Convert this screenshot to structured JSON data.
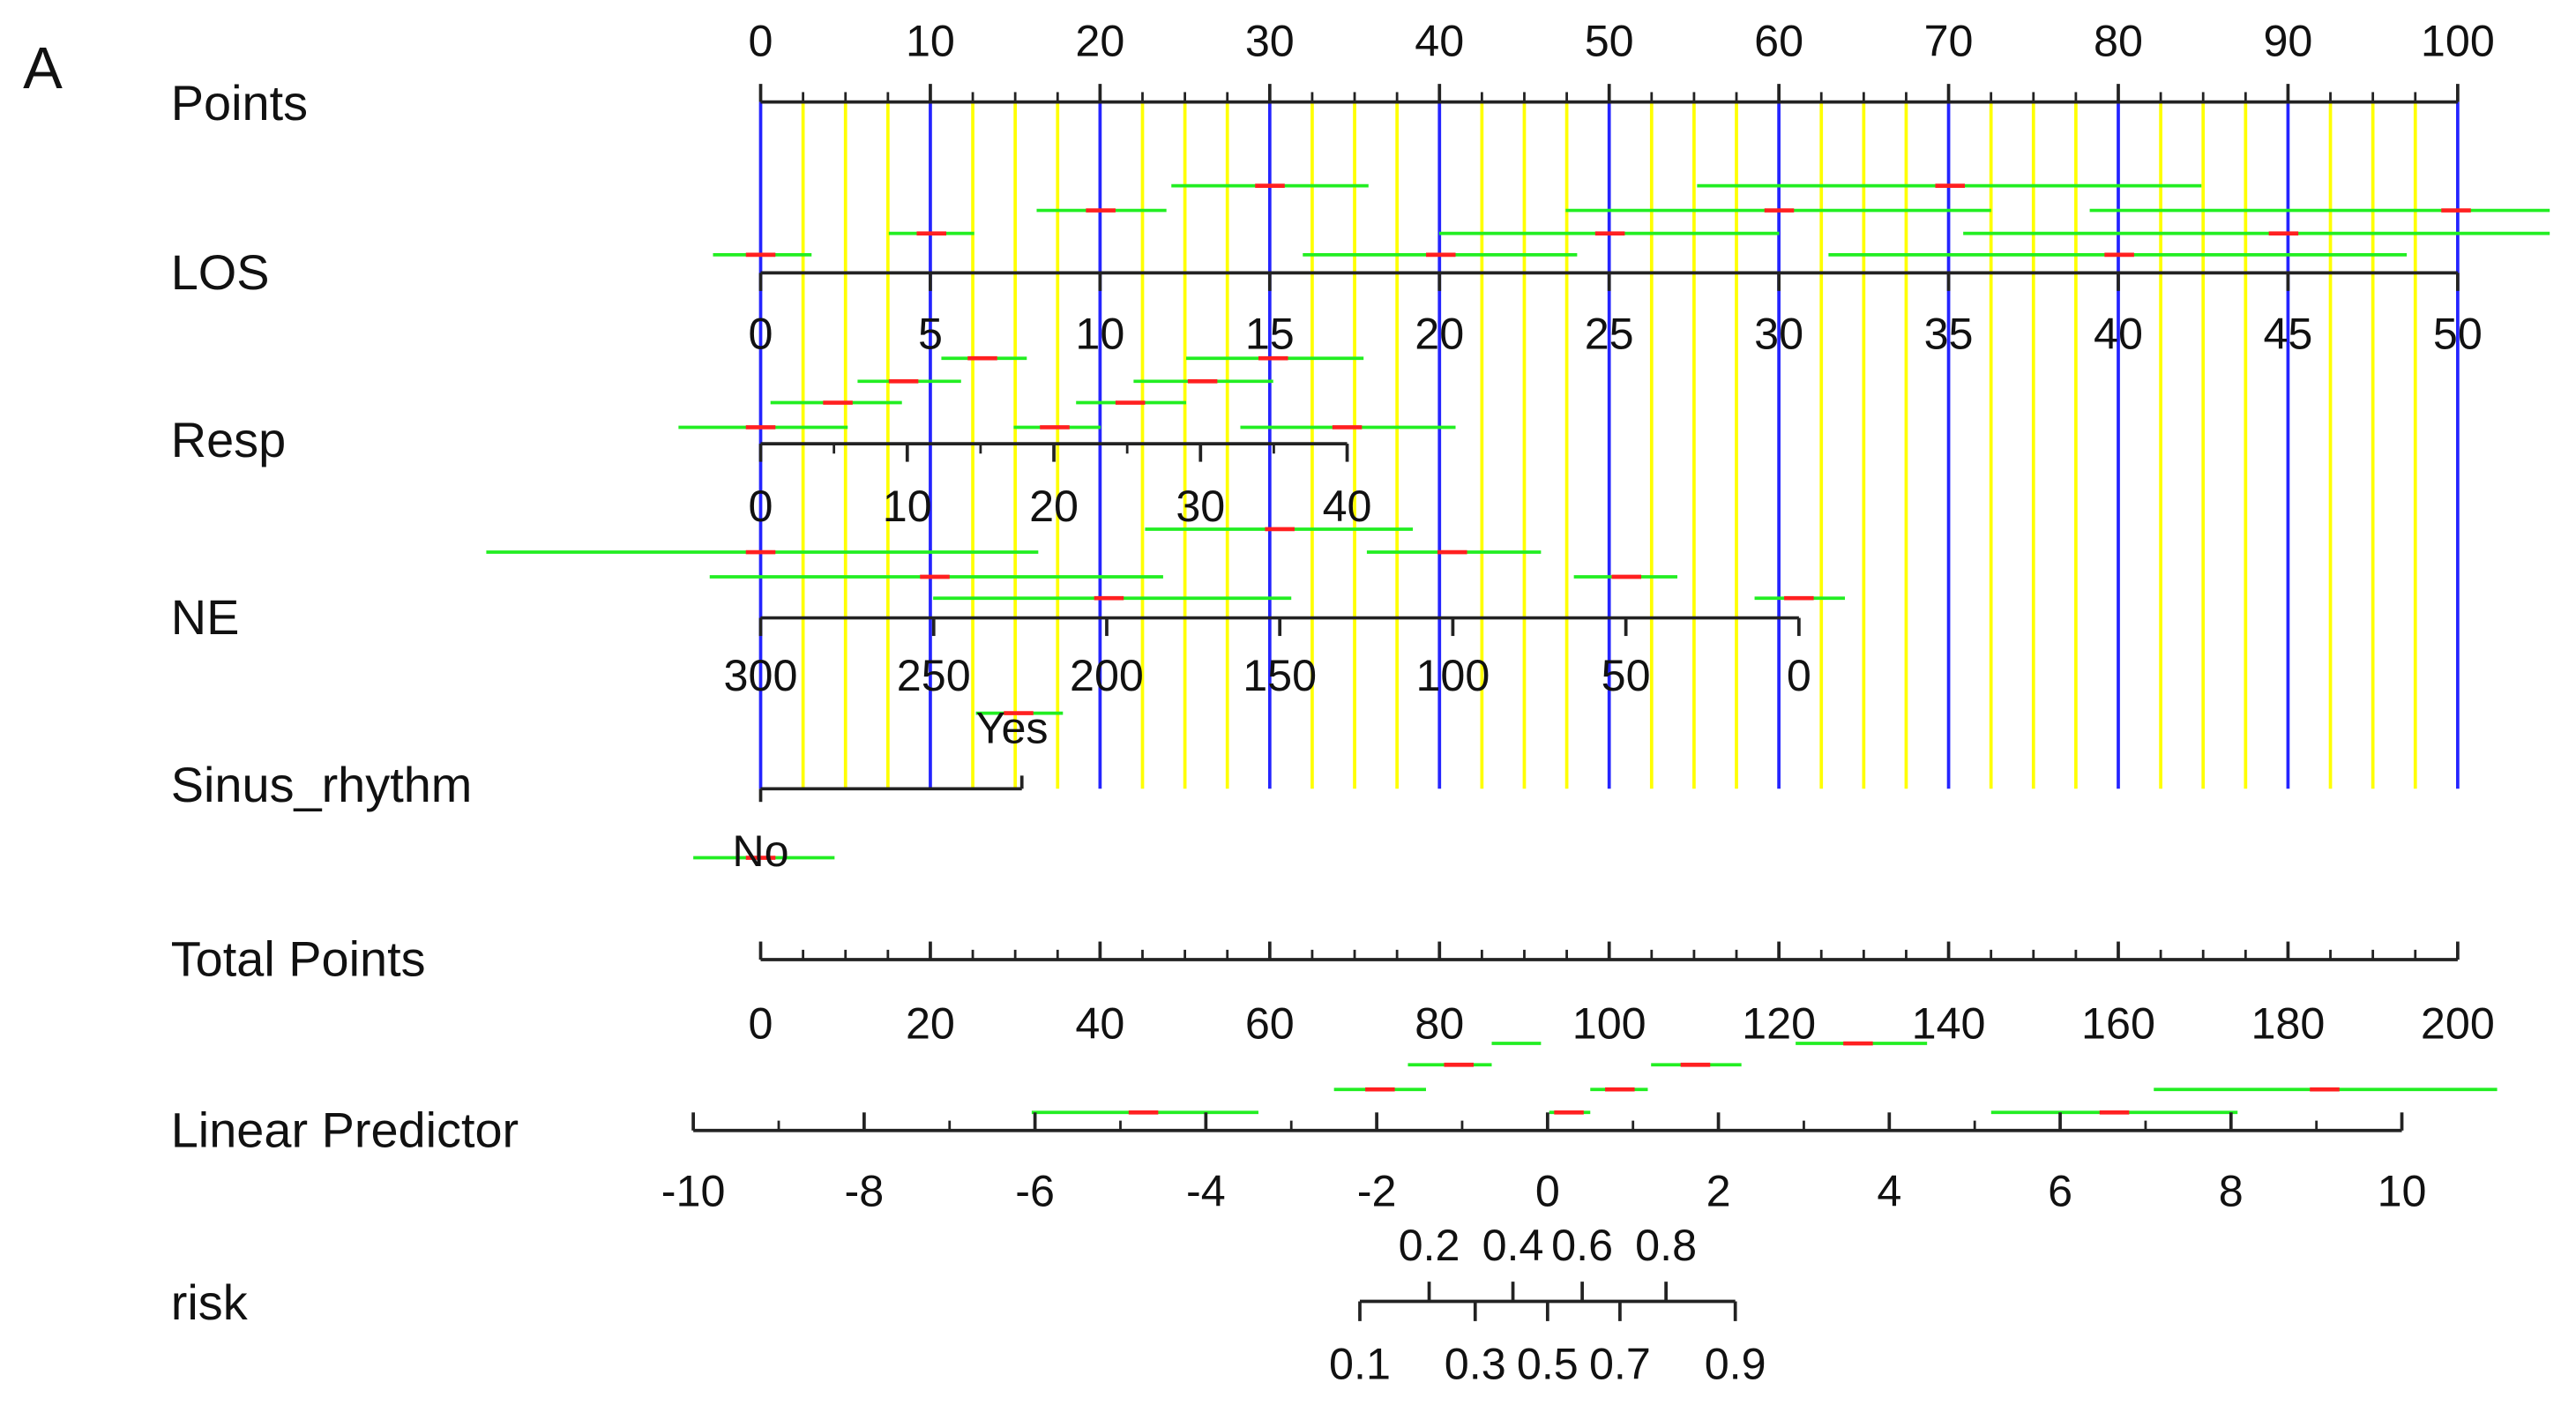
{
  "chart_data": {
    "type": "nomogram",
    "panel_label": "A",
    "grid": true,
    "scales": [
      {
        "name": "Points",
        "lim": [
          0,
          100
        ],
        "ticks": [
          0,
          10,
          20,
          30,
          40,
          50,
          60,
          70,
          80,
          90,
          100
        ],
        "minor_ticks": [
          2.5,
          5,
          7.5,
          12.5,
          15,
          17.5,
          22.5,
          25,
          27.5,
          32.5,
          35,
          37.5,
          42.5,
          45,
          47.5,
          52.5,
          55,
          57.5,
          62.5,
          65,
          67.5,
          72.5,
          75,
          77.5,
          82.5,
          85,
          87.5,
          92.5,
          95,
          97.5
        ]
      },
      {
        "name": "LOS",
        "lim": [
          0,
          50
        ],
        "ticks": [
          0,
          5,
          10,
          15,
          20,
          25,
          30,
          35,
          40,
          45,
          50
        ]
      },
      {
        "name": "Resp",
        "lim": [
          0,
          40
        ],
        "ticks": [
          0,
          10,
          20,
          30,
          40
        ],
        "minor_ticks": [
          5,
          15,
          25,
          35
        ]
      },
      {
        "name": "NE",
        "lim": [
          300,
          0
        ],
        "ticks": [
          300,
          250,
          200,
          150,
          100,
          50,
          0
        ]
      },
      {
        "name": "Sinus_rhythm",
        "categories": [
          "No",
          "Yes"
        ]
      },
      {
        "name": "Total Points",
        "lim": [
          0,
          200
        ],
        "ticks": [
          0,
          20,
          40,
          60,
          80,
          100,
          120,
          140,
          160,
          180,
          200
        ],
        "minor_ticks": [
          5,
          10,
          15,
          25,
          30,
          35,
          45,
          50,
          55,
          65,
          70,
          75,
          85,
          90,
          95,
          105,
          110,
          115,
          125,
          130,
          135,
          145,
          150,
          155,
          165,
          170,
          175,
          185,
          190,
          195
        ]
      },
      {
        "name": "Linear Predictor",
        "lim": [
          -10,
          10
        ],
        "ticks": [
          -10,
          -8,
          -6,
          -4,
          -2,
          0,
          2,
          4,
          6,
          8,
          10
        ],
        "minor_ticks": [
          -9,
          -7,
          -5,
          -3,
          -1,
          1,
          3,
          5,
          7,
          9
        ]
      },
      {
        "name": "risk",
        "lim": [
          0.1,
          0.9
        ],
        "ticks_top": [
          0.2,
          0.4,
          0.6,
          0.8
        ],
        "ticks_bottom": [
          0.1,
          0.3,
          0.5,
          0.7,
          0.9
        ]
      }
    ]
  }
}
